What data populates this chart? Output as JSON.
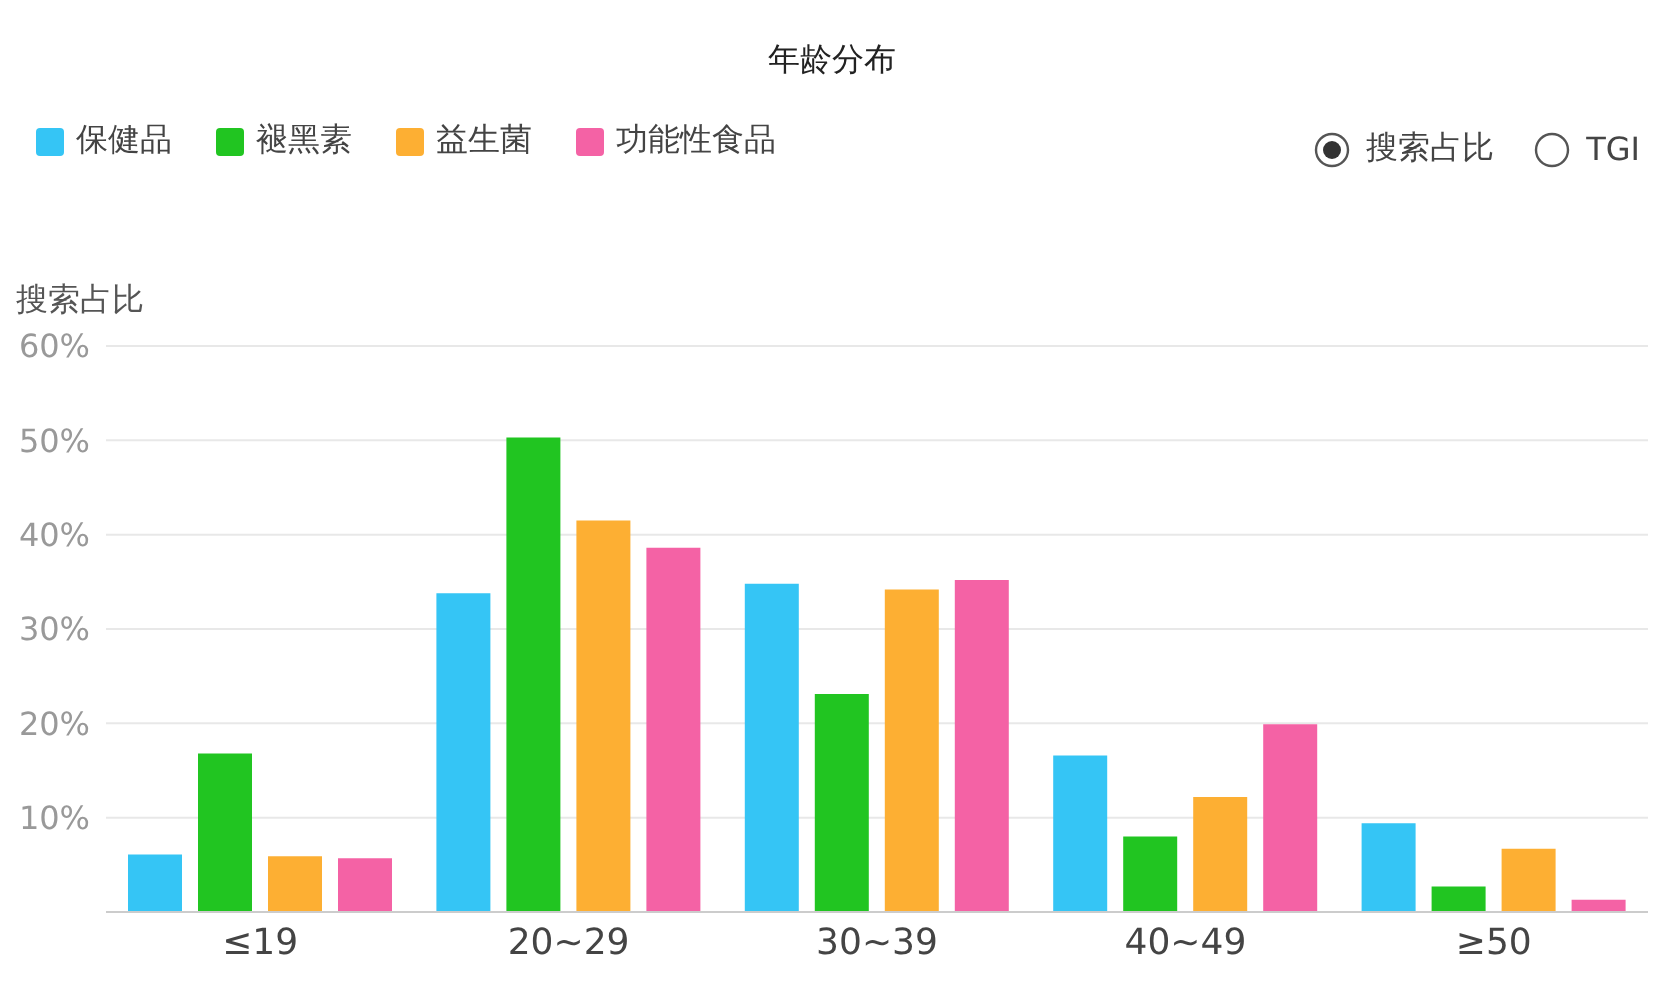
{
  "chart_data": {
    "type": "bar",
    "title": "年龄分布",
    "ylabel": "搜索占比",
    "categories": [
      "≤19",
      "20~29",
      "30~39",
      "40~49",
      "≥50"
    ],
    "series": [
      {
        "name": "保健品",
        "color": "#35c5f5",
        "values": [
          6.1,
          33.8,
          34.8,
          16.6,
          9.4
        ]
      },
      {
        "name": "褪黑素",
        "color": "#21c521",
        "values": [
          16.8,
          50.3,
          23.1,
          8.0,
          2.7
        ]
      },
      {
        "name": "益生菌",
        "color": "#fdaf33",
        "values": [
          5.9,
          41.5,
          34.2,
          12.2,
          6.7
        ]
      },
      {
        "name": "功能性食品",
        "color": "#f462a5",
        "values": [
          5.7,
          38.6,
          35.2,
          19.9,
          1.3
        ]
      }
    ],
    "ylim": [
      0,
      60
    ],
    "yticks": [
      {
        "value": 10,
        "label": "10%"
      },
      {
        "value": 20,
        "label": "20%"
      },
      {
        "value": 30,
        "label": "30%"
      },
      {
        "value": 40,
        "label": "40%"
      },
      {
        "value": 50,
        "label": "50%"
      },
      {
        "value": 60,
        "label": "60%"
      }
    ],
    "grid": "y",
    "legend": "top left",
    "annotations": [
      "搜索占比",
      "TGI"
    ]
  }
}
